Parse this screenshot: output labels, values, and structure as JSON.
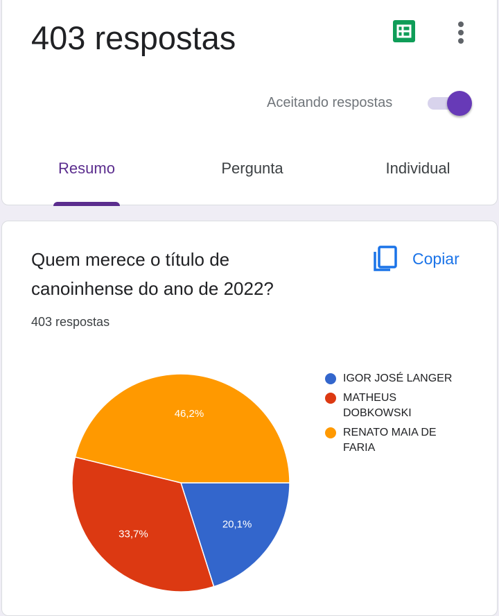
{
  "header": {
    "responses_title": "403 respostas",
    "accepting_label": "Aceitando respostas",
    "accepting_enabled": true,
    "sheets_icon": "google-sheets-icon",
    "more_icon": "more-vert-icon"
  },
  "tabs": [
    {
      "label": "Resumo",
      "active": true
    },
    {
      "label": "Pergunta",
      "active": false
    },
    {
      "label": "Individual",
      "active": false
    }
  ],
  "question": {
    "title_line1": "Quem merece o título de",
    "title_line2": "canoinhense do ano de 2022?",
    "count": "403 respostas",
    "copy_label": "Copiar",
    "copy_icon": "copy-icon"
  },
  "colors": {
    "accent": "#673ab7",
    "tab_active": "#5b2d8e",
    "link": "#1a73e8",
    "sheets_green": "#0f9d58"
  },
  "chart_data": {
    "type": "pie",
    "categories": [
      "IGOR JOSÉ LANGER",
      "MATHEUS DOBKOWSKI",
      "RENATO MAIA DE FARIA"
    ],
    "values": [
      20.1,
      33.7,
      46.2
    ],
    "labels": [
      "20,1%",
      "33,7%",
      "46,2%"
    ],
    "colors": [
      "#3366cc",
      "#dc3912",
      "#ff9900"
    ],
    "legend_position": "right",
    "legend_lines": [
      [
        "IGOR JOSÉ LANGER"
      ],
      [
        "MATHEUS",
        "DOBKOWSKI"
      ],
      [
        "RENATO MAIA DE",
        "FARIA"
      ]
    ]
  }
}
